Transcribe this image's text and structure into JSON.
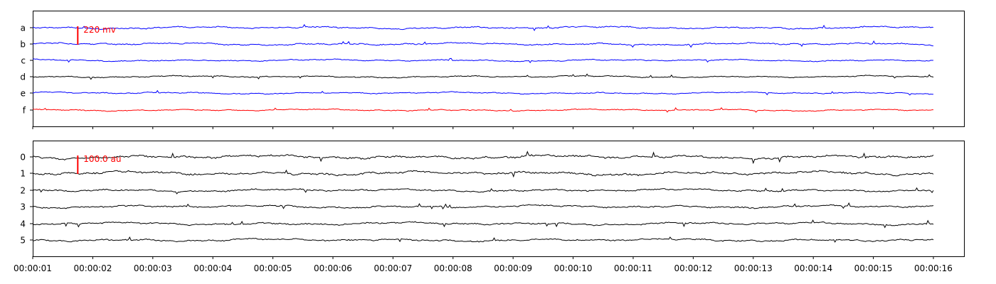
{
  "chart_data": [
    {
      "type": "line",
      "title": "",
      "xlabel": "",
      "ylabel": "",
      "grid": false,
      "xlim": [
        "00:00:01",
        "00:00:16"
      ],
      "channels": [
        {
          "name": "a",
          "color": "#0000ff"
        },
        {
          "name": "b",
          "color": "#0000ff"
        },
        {
          "name": "c",
          "color": "#0000ff"
        },
        {
          "name": "d",
          "color": "#000000"
        },
        {
          "name": "e",
          "color": "#0000ff"
        },
        {
          "name": "f",
          "color": "#ff0000"
        }
      ],
      "scale_bar": {
        "label": "220 mv",
        "value": 220,
        "unit": "mv",
        "color": "#ff0000",
        "time": "00:00:01.75"
      },
      "x_tick_labels_visible": false
    },
    {
      "type": "line",
      "title": "",
      "xlabel": "",
      "ylabel": "",
      "grid": false,
      "xlim": [
        "00:00:01",
        "00:00:16"
      ],
      "channels": [
        {
          "name": "0",
          "color": "#000000"
        },
        {
          "name": "1",
          "color": "#000000"
        },
        {
          "name": "2",
          "color": "#000000"
        },
        {
          "name": "3",
          "color": "#000000"
        },
        {
          "name": "4",
          "color": "#000000"
        },
        {
          "name": "5",
          "color": "#000000"
        }
      ],
      "scale_bar": {
        "label": "100.0 au",
        "value": 100.0,
        "unit": "au",
        "color": "#ff0000",
        "time": "00:00:01.75"
      },
      "x_tick_labels": [
        "00:00:01",
        "00:00:02",
        "00:00:03",
        "00:00:04",
        "00:00:05",
        "00:00:06",
        "00:00:07",
        "00:00:08",
        "00:00:09",
        "00:00:10",
        "00:00:11",
        "00:00:12",
        "00:00:13",
        "00:00:14",
        "00:00:15",
        "00:00:16"
      ]
    }
  ]
}
